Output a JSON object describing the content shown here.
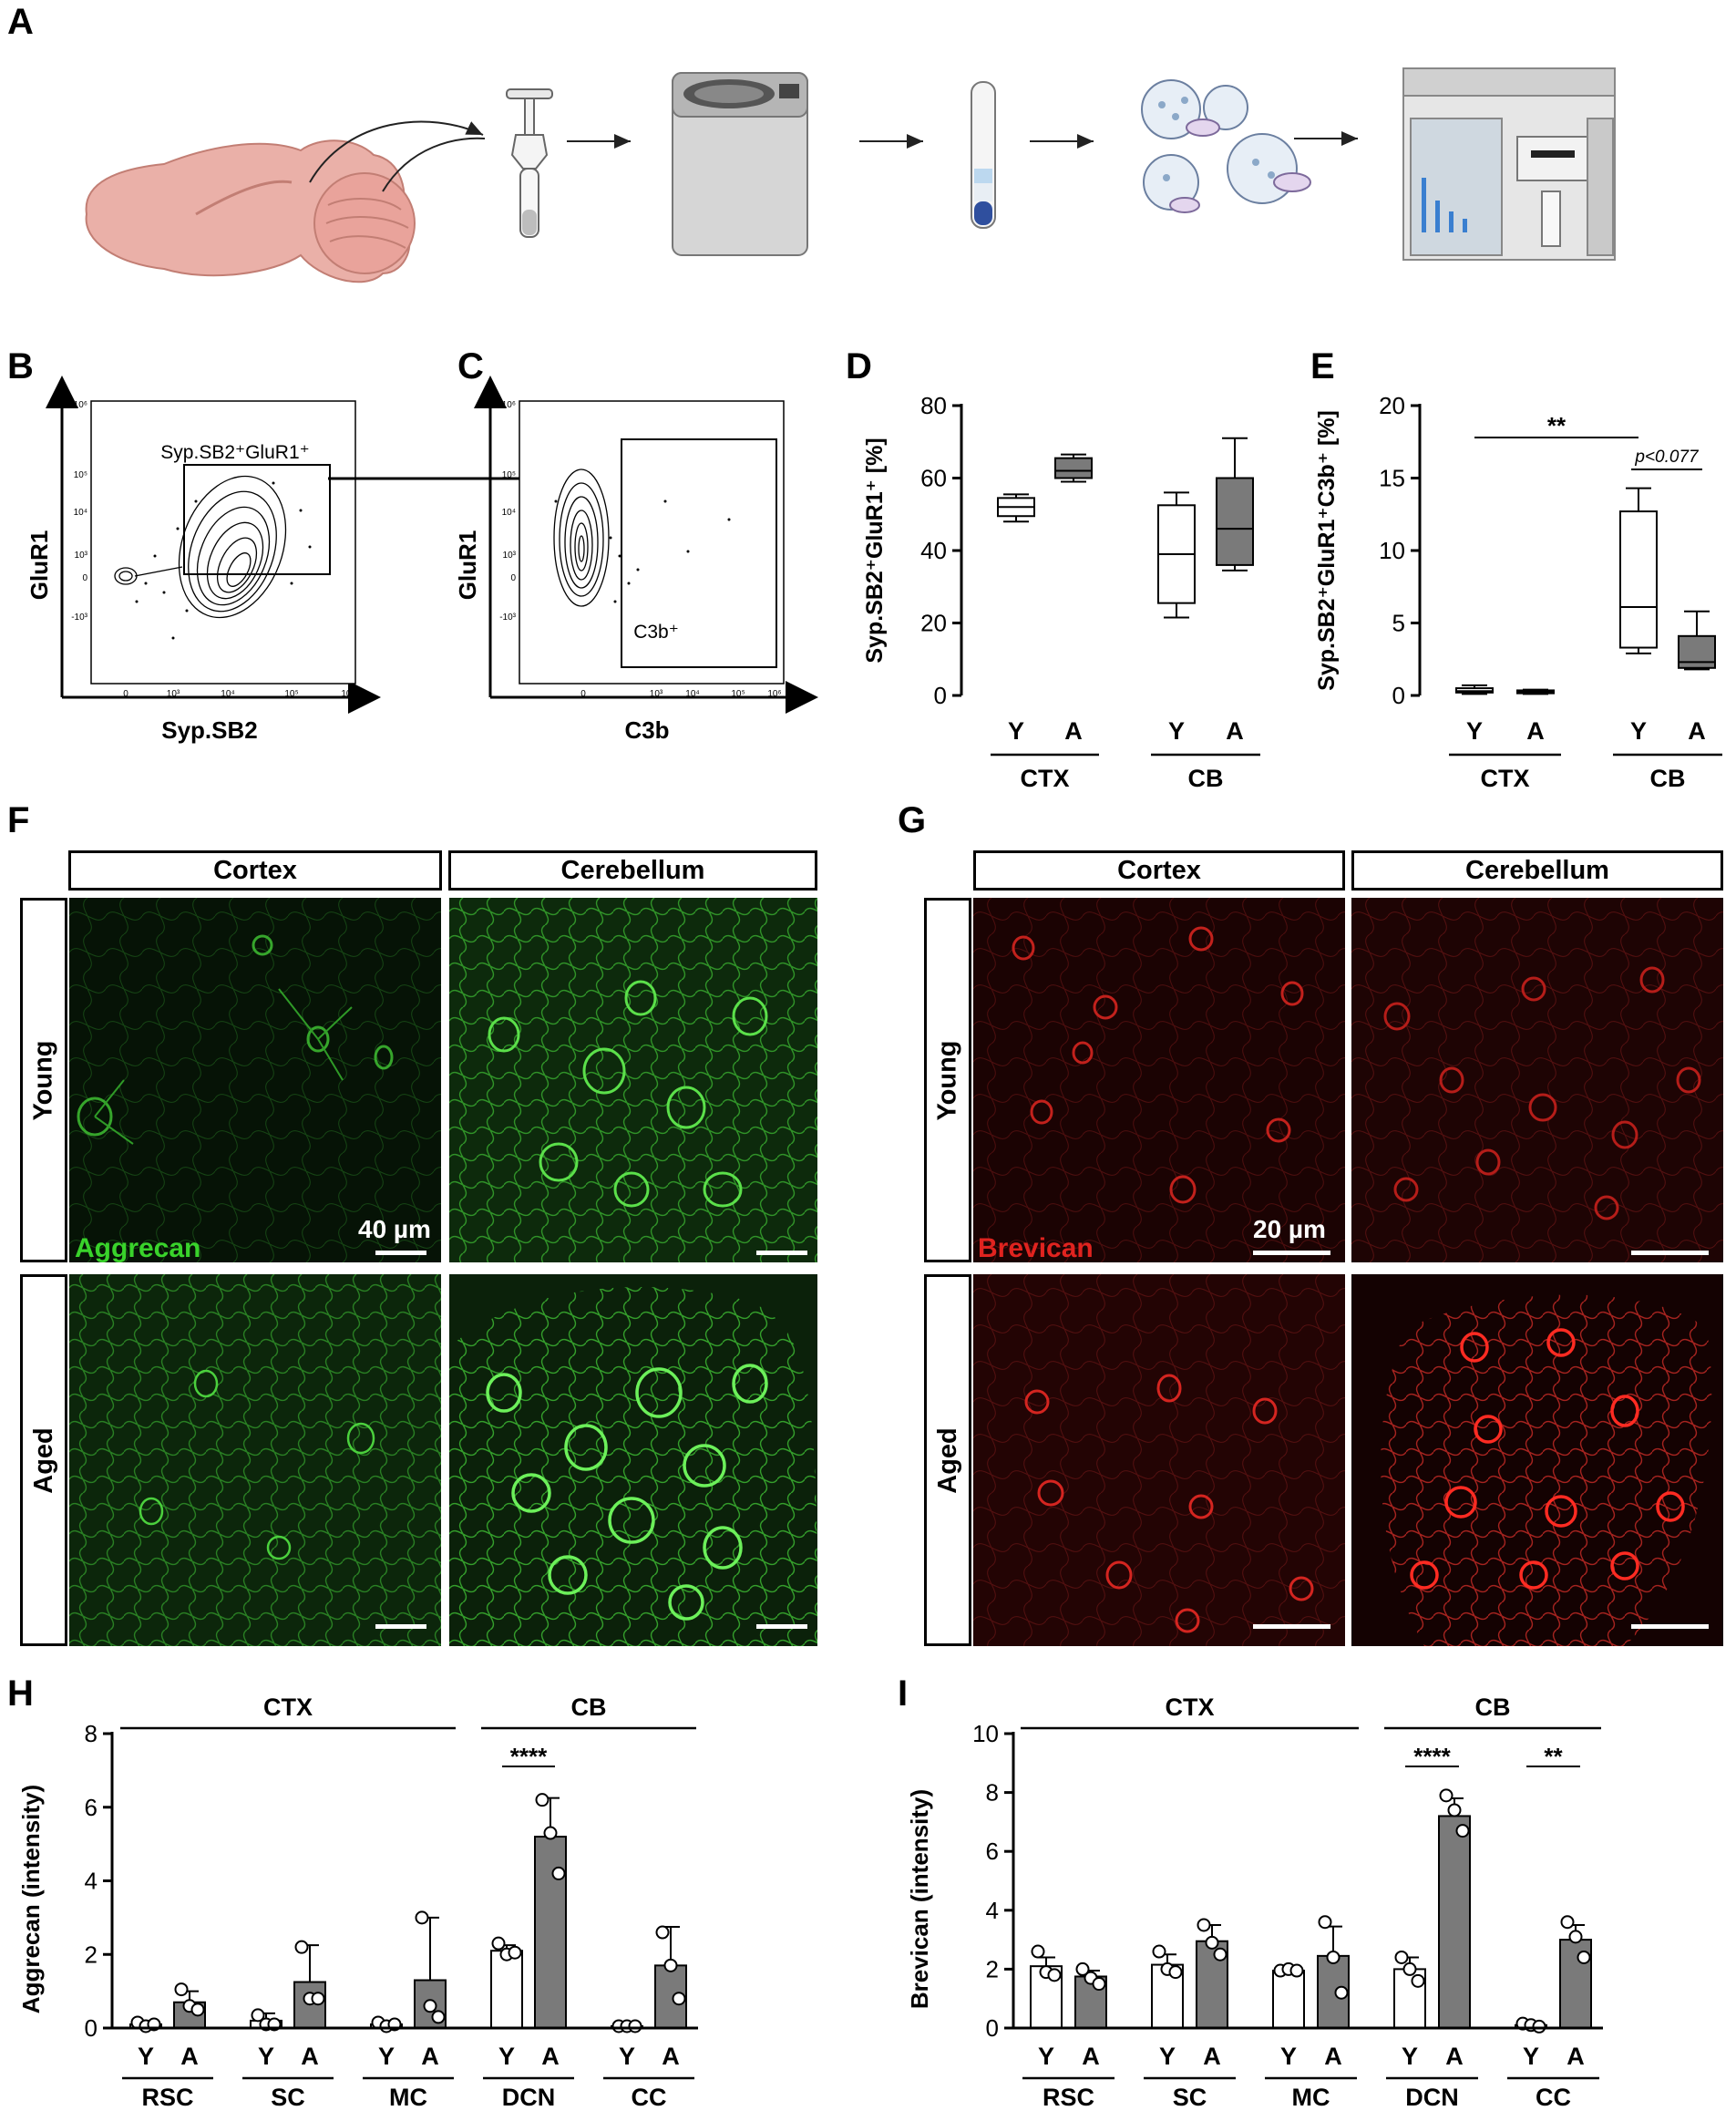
{
  "panels": {
    "A": "A",
    "B": "B",
    "C": "C",
    "D": "D",
    "E": "E",
    "F": "F",
    "G": "G",
    "H": "H",
    "I": "I"
  },
  "colors": {
    "green": "#39d32b",
    "red": "#e0231f",
    "dark_bar": "#7a7a7a",
    "light_box": "#ffffff",
    "brain": "#e9a9a1"
  },
  "schematic": {
    "steps": [
      "brain-tissue",
      "homogenizer",
      "centrifuge",
      "density-gradient-tube",
      "synaptosomes",
      "flow-cytometer"
    ]
  },
  "flow_B": {
    "ylabel": "GluR1",
    "xlabel": "Syp.SB2",
    "gate_label": "Syp.SB2⁺GluR1⁺",
    "y_ticks": [
      "10⁶",
      "10⁵",
      "10⁴",
      "10³",
      "0",
      "-10³"
    ],
    "x_ticks": [
      "0",
      "10³",
      "10⁴",
      "10⁵",
      "10⁶"
    ]
  },
  "flow_C": {
    "ylabel": "GluR1",
    "xlabel": "C3b",
    "gate_label": "C3b⁺",
    "y_ticks": [
      "10⁶",
      "10⁵",
      "10⁴",
      "10³",
      "0",
      "-10³"
    ],
    "x_ticks": [
      "0",
      "10³",
      "10⁴",
      "10⁵",
      "10⁶"
    ]
  },
  "chart_data": [
    {
      "panel": "D",
      "type": "box",
      "ylabel": "Syp.SB2⁺GluR1⁺ [%]",
      "yticks": [
        0,
        20,
        40,
        60,
        80
      ],
      "ylim": [
        0,
        80
      ],
      "groups": [
        "CTX",
        "CB"
      ],
      "categories": [
        "Y",
        "A",
        "Y",
        "A"
      ],
      "boxes": [
        {
          "group": "CTX",
          "cat": "Y",
          "fill": "white",
          "min": 48,
          "q1": 49.5,
          "median": 52,
          "q3": 54.5,
          "max": 55.5
        },
        {
          "group": "CTX",
          "cat": "A",
          "fill": "grey",
          "min": 59,
          "q1": 60,
          "median": 62,
          "q3": 65.5,
          "max": 66.5
        },
        {
          "group": "CB",
          "cat": "Y",
          "fill": "white",
          "min": 21.5,
          "q1": 25.5,
          "median": 39,
          "q3": 52.5,
          "max": 56
        },
        {
          "group": "CB",
          "cat": "A",
          "fill": "grey",
          "min": 34.5,
          "q1": 36,
          "median": 46,
          "q3": 60,
          "max": 71
        }
      ]
    },
    {
      "panel": "E",
      "type": "box",
      "ylabel": "Syp.SB2⁺GluR1⁺C3b⁺ [%]",
      "yticks": [
        0,
        5,
        10,
        15,
        20
      ],
      "ylim": [
        0,
        20
      ],
      "groups": [
        "CTX",
        "CB"
      ],
      "categories": [
        "Y",
        "A",
        "Y",
        "A"
      ],
      "annotations": [
        "**",
        "p<0.077"
      ],
      "boxes": [
        {
          "group": "CTX",
          "cat": "Y",
          "fill": "white",
          "min": 0.1,
          "q1": 0.2,
          "median": 0.3,
          "q3": 0.5,
          "max": 0.7
        },
        {
          "group": "CTX",
          "cat": "A",
          "fill": "grey",
          "min": 0.1,
          "q1": 0.15,
          "median": 0.25,
          "q3": 0.35,
          "max": 0.4
        },
        {
          "group": "CB",
          "cat": "Y",
          "fill": "white",
          "min": 2.9,
          "q1": 3.3,
          "median": 6.1,
          "q3": 12.7,
          "max": 14.3
        },
        {
          "group": "CB",
          "cat": "A",
          "fill": "grey",
          "min": 1.8,
          "q1": 1.9,
          "median": 2.3,
          "q3": 4.1,
          "max": 5.8
        }
      ]
    },
    {
      "panel": "H",
      "type": "bar",
      "ylabel": "Aggrecan (intensity)",
      "yticks": [
        0,
        2,
        4,
        6,
        8
      ],
      "ylim": [
        0,
        8
      ],
      "regions": [
        "RSC",
        "SC",
        "MC",
        "DCN",
        "CC"
      ],
      "conditions": [
        "Y",
        "A"
      ],
      "group_labels": [
        {
          "label": "CTX",
          "span": [
            "RSC",
            "MC"
          ]
        },
        {
          "label": "CB",
          "span": [
            "DCN",
            "CC"
          ]
        }
      ],
      "significance": [
        {
          "region": "DCN",
          "label": "****"
        }
      ],
      "series": [
        {
          "name": "Y",
          "values": [
            0.1,
            0.2,
            0.1,
            2.1,
            0.05
          ],
          "err": [
            0.05,
            0.2,
            0.05,
            0.15,
            0.05
          ],
          "points": [
            [
              0.15,
              0.05,
              0.1
            ],
            [
              0.35,
              0.1,
              0.1
            ],
            [
              0.15,
              0.05,
              0.1
            ],
            [
              2.3,
              2.0,
              2.05
            ],
            [
              0.05,
              0.05,
              0.05
            ]
          ]
        },
        {
          "name": "A",
          "values": [
            0.7,
            1.25,
            1.3,
            5.2,
            1.7
          ],
          "err": [
            0.3,
            1.0,
            1.7,
            1.05,
            1.05
          ],
          "points": [
            [
              1.05,
              0.6,
              0.5
            ],
            [
              2.2,
              0.8,
              0.8
            ],
            [
              3.0,
              0.6,
              0.3
            ],
            [
              6.2,
              5.3,
              4.2
            ],
            [
              2.6,
              1.7,
              0.8
            ]
          ]
        }
      ]
    },
    {
      "panel": "I",
      "type": "bar",
      "ylabel": "Brevican (intensity)",
      "yticks": [
        0,
        2,
        4,
        6,
        8,
        10
      ],
      "ylim": [
        0,
        10
      ],
      "regions": [
        "RSC",
        "SC",
        "MC",
        "DCN",
        "CC"
      ],
      "conditions": [
        "Y",
        "A"
      ],
      "group_labels": [
        {
          "label": "CTX",
          "span": [
            "RSC",
            "MC"
          ]
        },
        {
          "label": "CB",
          "span": [
            "DCN",
            "CC"
          ]
        }
      ],
      "significance": [
        {
          "region": "DCN",
          "label": "****"
        },
        {
          "region": "CC",
          "label": "**"
        }
      ],
      "series": [
        {
          "name": "Y",
          "values": [
            2.1,
            2.15,
            1.95,
            2.0,
            0.1
          ],
          "err": [
            0.3,
            0.35,
            0.1,
            0.4,
            0.05
          ],
          "points": [
            [
              2.6,
              1.9,
              1.8
            ],
            [
              2.6,
              2.0,
              1.9
            ],
            [
              1.95,
              2.0,
              1.95
            ],
            [
              2.4,
              2.0,
              1.6
            ],
            [
              0.15,
              0.1,
              0.05
            ]
          ]
        },
        {
          "name": "A",
          "values": [
            1.75,
            2.95,
            2.45,
            7.2,
            3.0
          ],
          "err": [
            0.2,
            0.55,
            1.0,
            0.6,
            0.5
          ],
          "points": [
            [
              2.0,
              1.7,
              1.5
            ],
            [
              3.5,
              2.9,
              2.5
            ],
            [
              3.6,
              2.4,
              1.2
            ],
            [
              7.9,
              7.4,
              6.7
            ],
            [
              3.6,
              3.1,
              2.4
            ]
          ]
        }
      ]
    }
  ],
  "micro_F": {
    "col_headers": [
      "Cortex",
      "Cerebellum"
    ],
    "row_headers": [
      "Young",
      "Aged"
    ],
    "stain": "Aggrecan",
    "scale": "40 µm"
  },
  "micro_G": {
    "col_headers": [
      "Cortex",
      "Cerebellum"
    ],
    "row_headers": [
      "Young",
      "Aged"
    ],
    "stain": "Brevican",
    "scale": "20 µm"
  }
}
